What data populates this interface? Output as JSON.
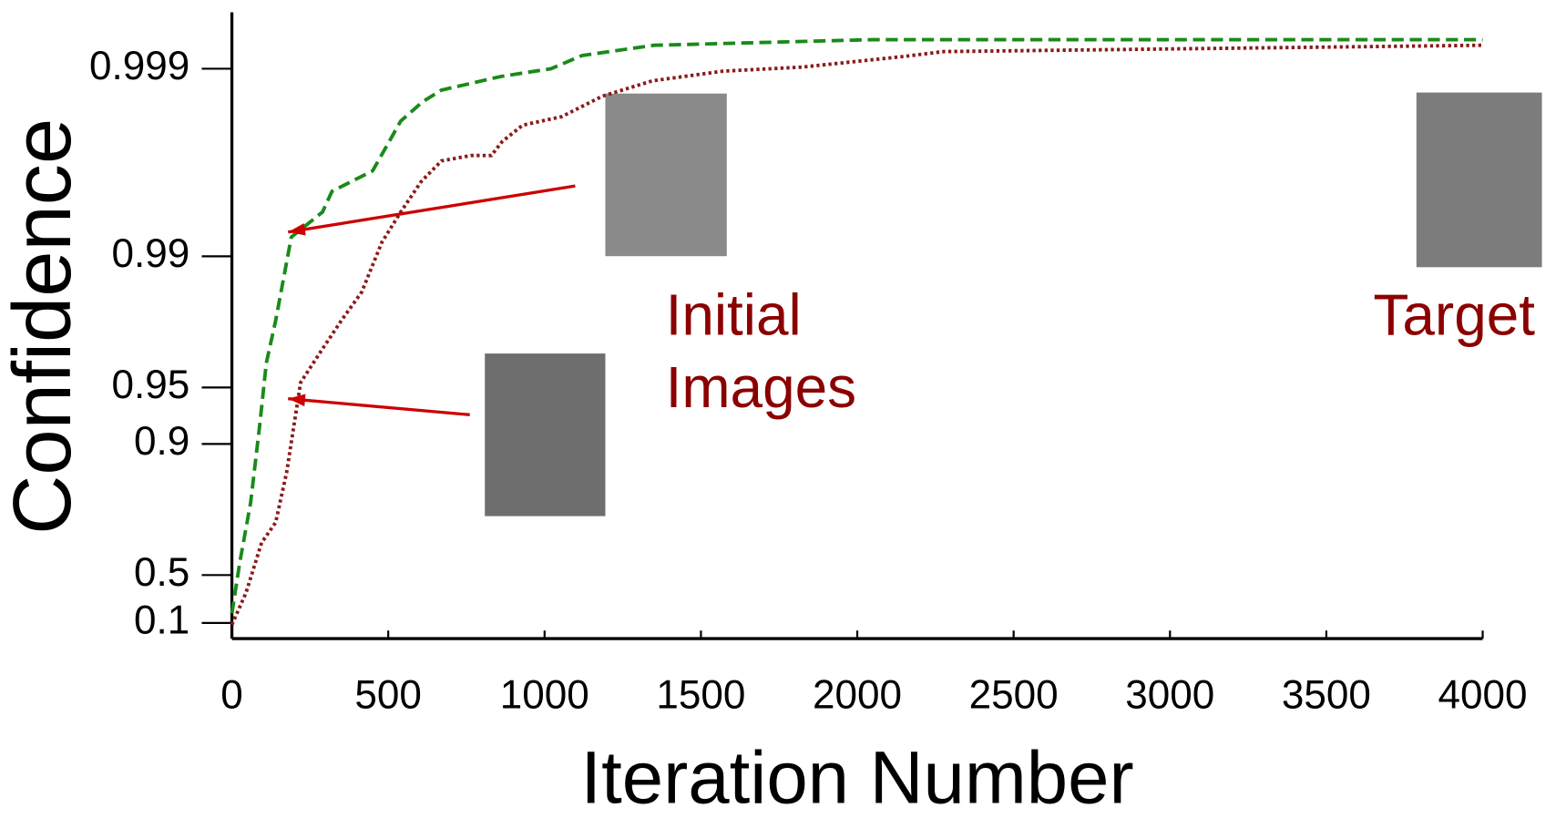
{
  "chart_data": {
    "type": "line",
    "xlabel": "Iteration Number",
    "ylabel": "Confidence",
    "yscale": "neg-log10-complement",
    "xlim": [
      0,
      4000
    ],
    "xticks": [
      0,
      500,
      1000,
      1500,
      2000,
      2500,
      3000,
      3500,
      4000
    ],
    "ylim": [
      -0.09,
      0.9995
    ],
    "yticks": [
      0.1,
      0.5,
      0.9,
      0.95,
      0.99,
      0.999
    ],
    "series": [
      {
        "color": "#1a8a1a",
        "dash": "dashed",
        "x": [
          0,
          25,
          60,
          90,
          110,
          140,
          190,
          290,
          320,
          450,
          540,
          610,
          670,
          860,
          1020,
          1120,
          1350,
          2050,
          4000
        ],
        "values": [
          0.2,
          0.57,
          0.795,
          0.923,
          0.963,
          0.978,
          0.9921,
          0.9942,
          0.9955,
          0.9965,
          0.9981,
          0.9985,
          0.9987,
          0.9989,
          0.999,
          0.99915,
          0.99925,
          0.9993,
          0.9993
        ]
      },
      {
        "color": "#8b1a1a",
        "dash": "dotted",
        "x": [
          0,
          45,
          95,
          140,
          175,
          220,
          285,
          350,
          415,
          480,
          540,
          605,
          670,
          765,
          830,
          865,
          930,
          1055,
          1185,
          1345,
          1570,
          1825,
          2150,
          2275,
          4000
        ],
        "values": [
          0.08,
          0.378,
          0.664,
          0.738,
          0.858,
          0.953,
          0.968,
          0.978,
          0.9845,
          0.9916,
          0.9942,
          0.996,
          0.9969,
          0.9971,
          0.9971,
          0.99756,
          0.998,
          0.9982,
          0.9986,
          0.99884,
          0.99897,
          0.99902,
          0.99914,
          0.99919,
          0.99925
        ]
      }
    ],
    "annotation_color": "#8b0000",
    "annotations": [
      {
        "lines": [
          "Initial",
          "Images"
        ]
      },
      {
        "lines": [
          "Target"
        ]
      }
    ]
  }
}
